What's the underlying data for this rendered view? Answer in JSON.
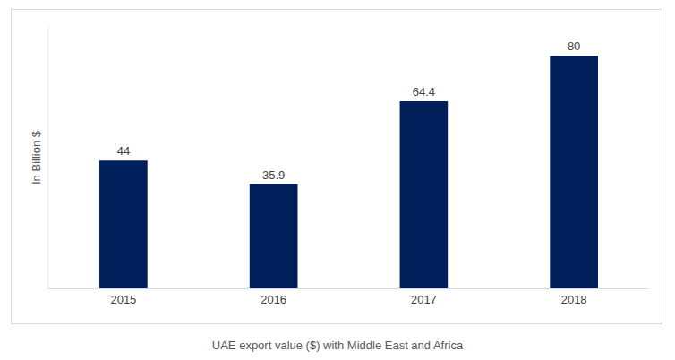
{
  "chart_data": {
    "type": "bar",
    "title": "UAE export value ($) with Middle East and Africa",
    "y_label": "In Billion $",
    "categories": [
      "2015",
      "2016",
      "2017",
      "2018"
    ],
    "values": [
      44,
      35.9,
      64.4,
      80
    ],
    "color": "#001f5b",
    "ylim": [
      0,
      90
    ],
    "grid": false,
    "data_labels": true,
    "tick_labels": "x"
  }
}
